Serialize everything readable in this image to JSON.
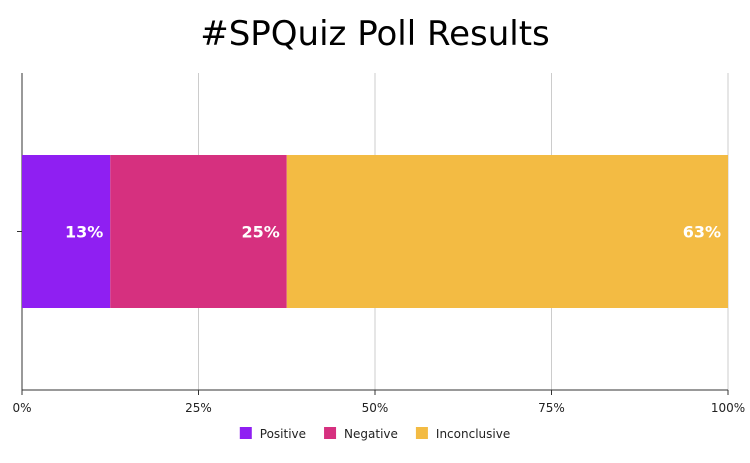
{
  "chart_data": {
    "type": "bar",
    "orientation": "horizontal",
    "stacked": true,
    "title": "#SPQuiz Poll Results",
    "xlim": [
      0,
      100
    ],
    "x_ticks": [
      "0%",
      "25%",
      "50%",
      "75%",
      "100%"
    ],
    "grid": true,
    "legend_position": "bottom",
    "series": [
      {
        "name": "Positive",
        "value": 12.5,
        "label": "13%",
        "color": "#8f1ff2"
      },
      {
        "name": "Negative",
        "value": 25,
        "label": "25%",
        "color": "#d6307f"
      },
      {
        "name": "Inconclusive",
        "value": 62.5,
        "label": "63%",
        "color": "#f3bb43"
      }
    ]
  }
}
